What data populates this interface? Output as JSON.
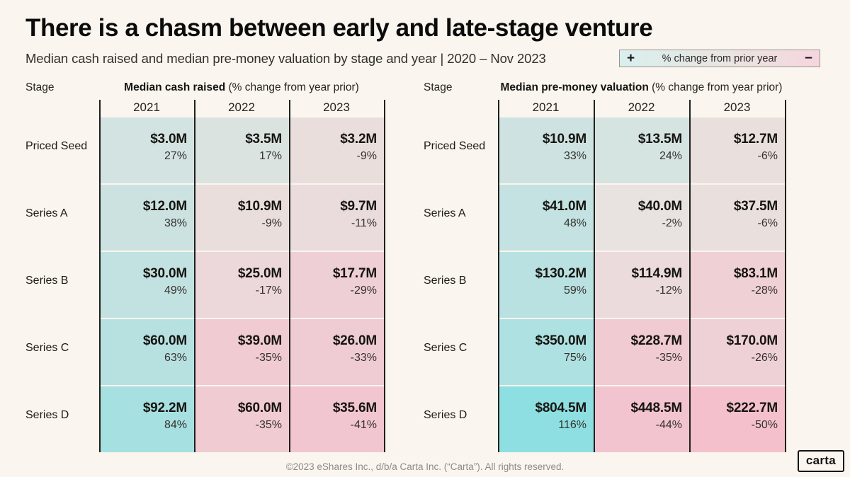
{
  "header": {
    "title": "There is a chasm between early and late-stage venture",
    "subtitle": "Median cash raised and median pre-money valuation by stage and year | 2020 – Nov 2023"
  },
  "legend": {
    "plus": "+",
    "minus": "−",
    "label": "% change from prior year",
    "positive_color": "#d9efee",
    "negative_color": "#f5d6de"
  },
  "stage_column_header": "Stage",
  "color_scale": {
    "neutral": "#e8e4e1",
    "positive_max": "#8edfe1",
    "negative_max": "#f3c0cc",
    "positive_limit": 116,
    "negative_limit": 50
  },
  "chart_data": [
    {
      "type": "heatmap-table",
      "title": "Median cash raised",
      "title_note": "(% change from year prior)",
      "columns": [
        "2021",
        "2022",
        "2023"
      ],
      "rows": [
        {
          "stage": "Priced Seed",
          "cells": [
            {
              "value": "$3.0M",
              "pct": 27,
              "pct_label": "27%"
            },
            {
              "value": "$3.5M",
              "pct": 17,
              "pct_label": "17%"
            },
            {
              "value": "$3.2M",
              "pct": -9,
              "pct_label": "-9%"
            }
          ]
        },
        {
          "stage": "Series A",
          "cells": [
            {
              "value": "$12.0M",
              "pct": 38,
              "pct_label": "38%"
            },
            {
              "value": "$10.9M",
              "pct": -9,
              "pct_label": "-9%"
            },
            {
              "value": "$9.7M",
              "pct": -11,
              "pct_label": "-11%"
            }
          ]
        },
        {
          "stage": "Series B",
          "cells": [
            {
              "value": "$30.0M",
              "pct": 49,
              "pct_label": "49%"
            },
            {
              "value": "$25.0M",
              "pct": -17,
              "pct_label": "-17%"
            },
            {
              "value": "$17.7M",
              "pct": -29,
              "pct_label": "-29%"
            }
          ]
        },
        {
          "stage": "Series C",
          "cells": [
            {
              "value": "$60.0M",
              "pct": 63,
              "pct_label": "63%"
            },
            {
              "value": "$39.0M",
              "pct": -35,
              "pct_label": "-35%"
            },
            {
              "value": "$26.0M",
              "pct": -33,
              "pct_label": "-33%"
            }
          ]
        },
        {
          "stage": "Series D",
          "cells": [
            {
              "value": "$92.2M",
              "pct": 84,
              "pct_label": "84%"
            },
            {
              "value": "$60.0M",
              "pct": -35,
              "pct_label": "-35%"
            },
            {
              "value": "$35.6M",
              "pct": -41,
              "pct_label": "-41%"
            }
          ]
        }
      ]
    },
    {
      "type": "heatmap-table",
      "title": "Median pre-money valuation",
      "title_note": "(% change from year prior)",
      "columns": [
        "2021",
        "2022",
        "2023"
      ],
      "rows": [
        {
          "stage": "Priced Seed",
          "cells": [
            {
              "value": "$10.9M",
              "pct": 33,
              "pct_label": "33%"
            },
            {
              "value": "$13.5M",
              "pct": 24,
              "pct_label": "24%"
            },
            {
              "value": "$12.7M",
              "pct": -6,
              "pct_label": "-6%"
            }
          ]
        },
        {
          "stage": "Series A",
          "cells": [
            {
              "value": "$41.0M",
              "pct": 48,
              "pct_label": "48%"
            },
            {
              "value": "$40.0M",
              "pct": -2,
              "pct_label": "-2%"
            },
            {
              "value": "$37.5M",
              "pct": -6,
              "pct_label": "-6%"
            }
          ]
        },
        {
          "stage": "Series B",
          "cells": [
            {
              "value": "$130.2M",
              "pct": 59,
              "pct_label": "59%"
            },
            {
              "value": "$114.9M",
              "pct": -12,
              "pct_label": "-12%"
            },
            {
              "value": "$83.1M",
              "pct": -28,
              "pct_label": "-28%"
            }
          ]
        },
        {
          "stage": "Series C",
          "cells": [
            {
              "value": "$350.0M",
              "pct": 75,
              "pct_label": "75%"
            },
            {
              "value": "$228.7M",
              "pct": -35,
              "pct_label": "-35%"
            },
            {
              "value": "$170.0M",
              "pct": -26,
              "pct_label": "-26%"
            }
          ]
        },
        {
          "stage": "Series D",
          "cells": [
            {
              "value": "$804.5M",
              "pct": 116,
              "pct_label": "116%"
            },
            {
              "value": "$448.5M",
              "pct": -44,
              "pct_label": "-44%"
            },
            {
              "value": "$222.7M",
              "pct": -50,
              "pct_label": "-50%"
            }
          ]
        }
      ]
    }
  ],
  "footer": {
    "copyright": "©2023 eShares Inc., d/b/a Carta Inc. (“Carta”). All rights reserved.",
    "logo_text": "carta"
  }
}
